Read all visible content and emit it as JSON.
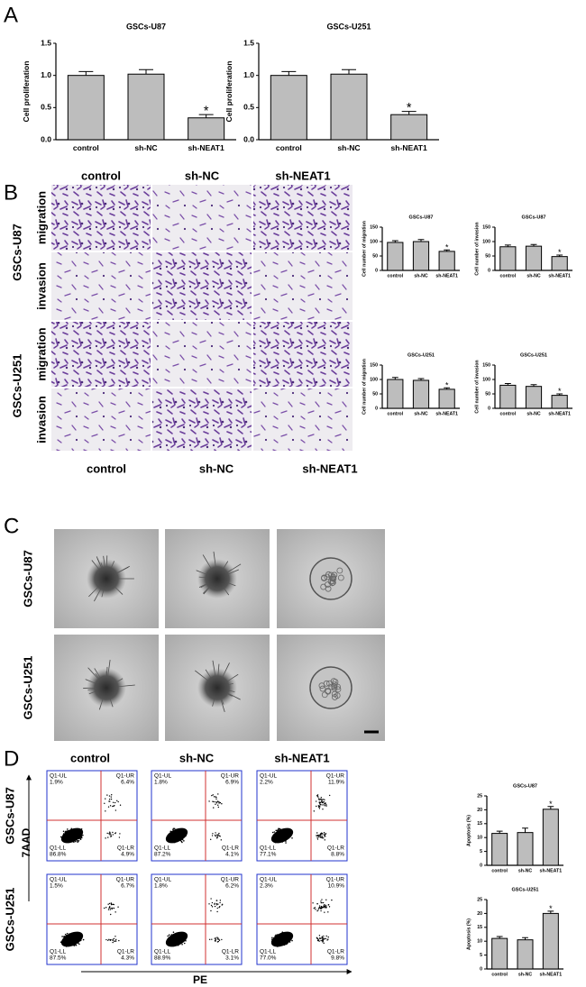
{
  "panel_labels": [
    "A",
    "B",
    "C",
    "D"
  ],
  "panel_b": {
    "columns": [
      "control",
      "sh-NC",
      "sh-NEAT1"
    ],
    "rows": [
      "GSCs-U87",
      "GSCs-U251"
    ],
    "subrows": [
      "migration",
      "invasion"
    ]
  },
  "panel_c": {
    "columns": [
      "control",
      "sh-NC",
      "sh-NEAT1"
    ],
    "rows": [
      "GSCs-U87",
      "GSCs-U251"
    ]
  },
  "panel_d": {
    "columns": [
      "control",
      "sh-NC",
      "sh-NEAT1"
    ],
    "rows": [
      "GSCs-U87",
      "GSCs-U251"
    ],
    "y_axis": "7AAD",
    "x_axis": "PE",
    "quadrants": [
      "Q1-UL",
      "Q1-UR",
      "Q1-LL",
      "Q1-LR"
    ],
    "plots": [
      [
        [
          "1.9%",
          "6.4%",
          "86.8%",
          "4.9%"
        ],
        [
          "1.8%",
          "6.9%",
          "87.2%",
          "4.1%"
        ],
        [
          "2.2%",
          "11.9%",
          "77.1%",
          "8.8%"
        ]
      ],
      [
        [
          "1.5%",
          "6.7%",
          "87.5%",
          "4.3%"
        ],
        [
          "1.8%",
          "6.2%",
          "88.9%",
          "3.1%"
        ],
        [
          "2.3%",
          "10.9%",
          "77.0%",
          "9.8%"
        ]
      ]
    ]
  },
  "chart_data": [
    {
      "type": "bar",
      "title": "GSCs-U87",
      "y_label": "Cell proliferation",
      "categories": [
        "control",
        "sh-NC",
        "sh-NEAT1"
      ],
      "values": [
        1.0,
        1.02,
        0.34
      ],
      "errors": [
        0.06,
        0.07,
        0.05
      ],
      "annotations": [
        null,
        null,
        "*"
      ],
      "color": "#bdbdbd",
      "ylim": [
        0,
        1.5
      ],
      "yticks": [
        {
          "value": 0,
          "label": "0.0"
        },
        0.5,
        {
          "value": 1,
          "label": "1.0"
        },
        1.5
      ]
    },
    {
      "type": "bar",
      "title": "GSCs-U251",
      "y_label": "Cell proliferation",
      "categories": [
        "control",
        "sh-NC",
        "sh-NEAT1"
      ],
      "values": [
        1.0,
        1.02,
        0.39
      ],
      "errors": [
        0.06,
        0.07,
        0.05
      ],
      "annotations": [
        null,
        null,
        "*"
      ],
      "color": "#bdbdbd",
      "ylim": [
        0,
        1.5
      ],
      "yticks": [
        {
          "value": 0,
          "label": "0.0"
        },
        0.5,
        {
          "value": 1,
          "label": "1.0"
        },
        1.5
      ]
    },
    {
      "type": "bar",
      "title": "GSCs-U87",
      "y_label": "Cell number of migration",
      "categories": [
        "control",
        "sh-NC",
        "sh-NEAT1"
      ],
      "values": [
        97,
        100,
        66
      ],
      "errors": [
        6,
        7,
        5
      ],
      "annotations": [
        null,
        null,
        "*"
      ],
      "color": "#bdbdbd",
      "ylim": [
        0,
        150
      ],
      "yticks": [
        0,
        50,
        100,
        150
      ]
    },
    {
      "type": "bar",
      "title": "GSCs-U87",
      "y_label": "Cell number of invasion",
      "categories": [
        "control",
        "sh-NC",
        "sh-NEAT1"
      ],
      "values": [
        82,
        84,
        48
      ],
      "errors": [
        6,
        6,
        5
      ],
      "annotations": [
        null,
        null,
        "*"
      ],
      "color": "#bdbdbd",
      "ylim": [
        0,
        150
      ],
      "yticks": [
        0,
        50,
        100,
        150
      ]
    },
    {
      "type": "bar",
      "title": "GSCs-U251",
      "y_label": "Cell number of migration",
      "categories": [
        "control",
        "sh-NC",
        "sh-NEAT1"
      ],
      "values": [
        100,
        97,
        66
      ],
      "errors": [
        7,
        6,
        5
      ],
      "annotations": [
        null,
        null,
        "*"
      ],
      "color": "#bdbdbd",
      "ylim": [
        0,
        150
      ],
      "yticks": [
        0,
        50,
        100,
        150
      ]
    },
    {
      "type": "bar",
      "title": "GSCs-U251",
      "y_label": "Cell number of invasion",
      "categories": [
        "control",
        "sh-NC",
        "sh-NEAT1"
      ],
      "values": [
        80,
        76,
        45
      ],
      "errors": [
        6,
        6,
        5
      ],
      "annotations": [
        null,
        null,
        "*"
      ],
      "color": "#bdbdbd",
      "ylim": [
        0,
        150
      ],
      "yticks": [
        0,
        50,
        100,
        150
      ]
    },
    {
      "type": "bar",
      "title": "GSCs-U87",
      "y_label": "Apoptosis (%)",
      "categories": [
        "control",
        "sh-NC",
        "sh-NEAT1"
      ],
      "values": [
        11.5,
        11.8,
        20.2
      ],
      "errors": [
        0.8,
        1.6,
        1.0
      ],
      "annotations": [
        null,
        null,
        "*"
      ],
      "color": "#bdbdbd",
      "ylim": [
        0,
        25
      ],
      "yticks": [
        0,
        5,
        10,
        15,
        20,
        25
      ]
    },
    {
      "type": "bar",
      "title": "GSCs-U251",
      "y_label": "Apoptosis (%)",
      "categories": [
        "control",
        "sh-NC",
        "sh-NEAT1"
      ],
      "values": [
        11,
        10.5,
        20
      ],
      "errors": [
        0.7,
        0.8,
        0.8
      ],
      "annotations": [
        null,
        null,
        "*"
      ],
      "color": "#bdbdbd",
      "ylim": [
        0,
        25
      ],
      "yticks": [
        0,
        5,
        10,
        15,
        20,
        25
      ]
    }
  ]
}
